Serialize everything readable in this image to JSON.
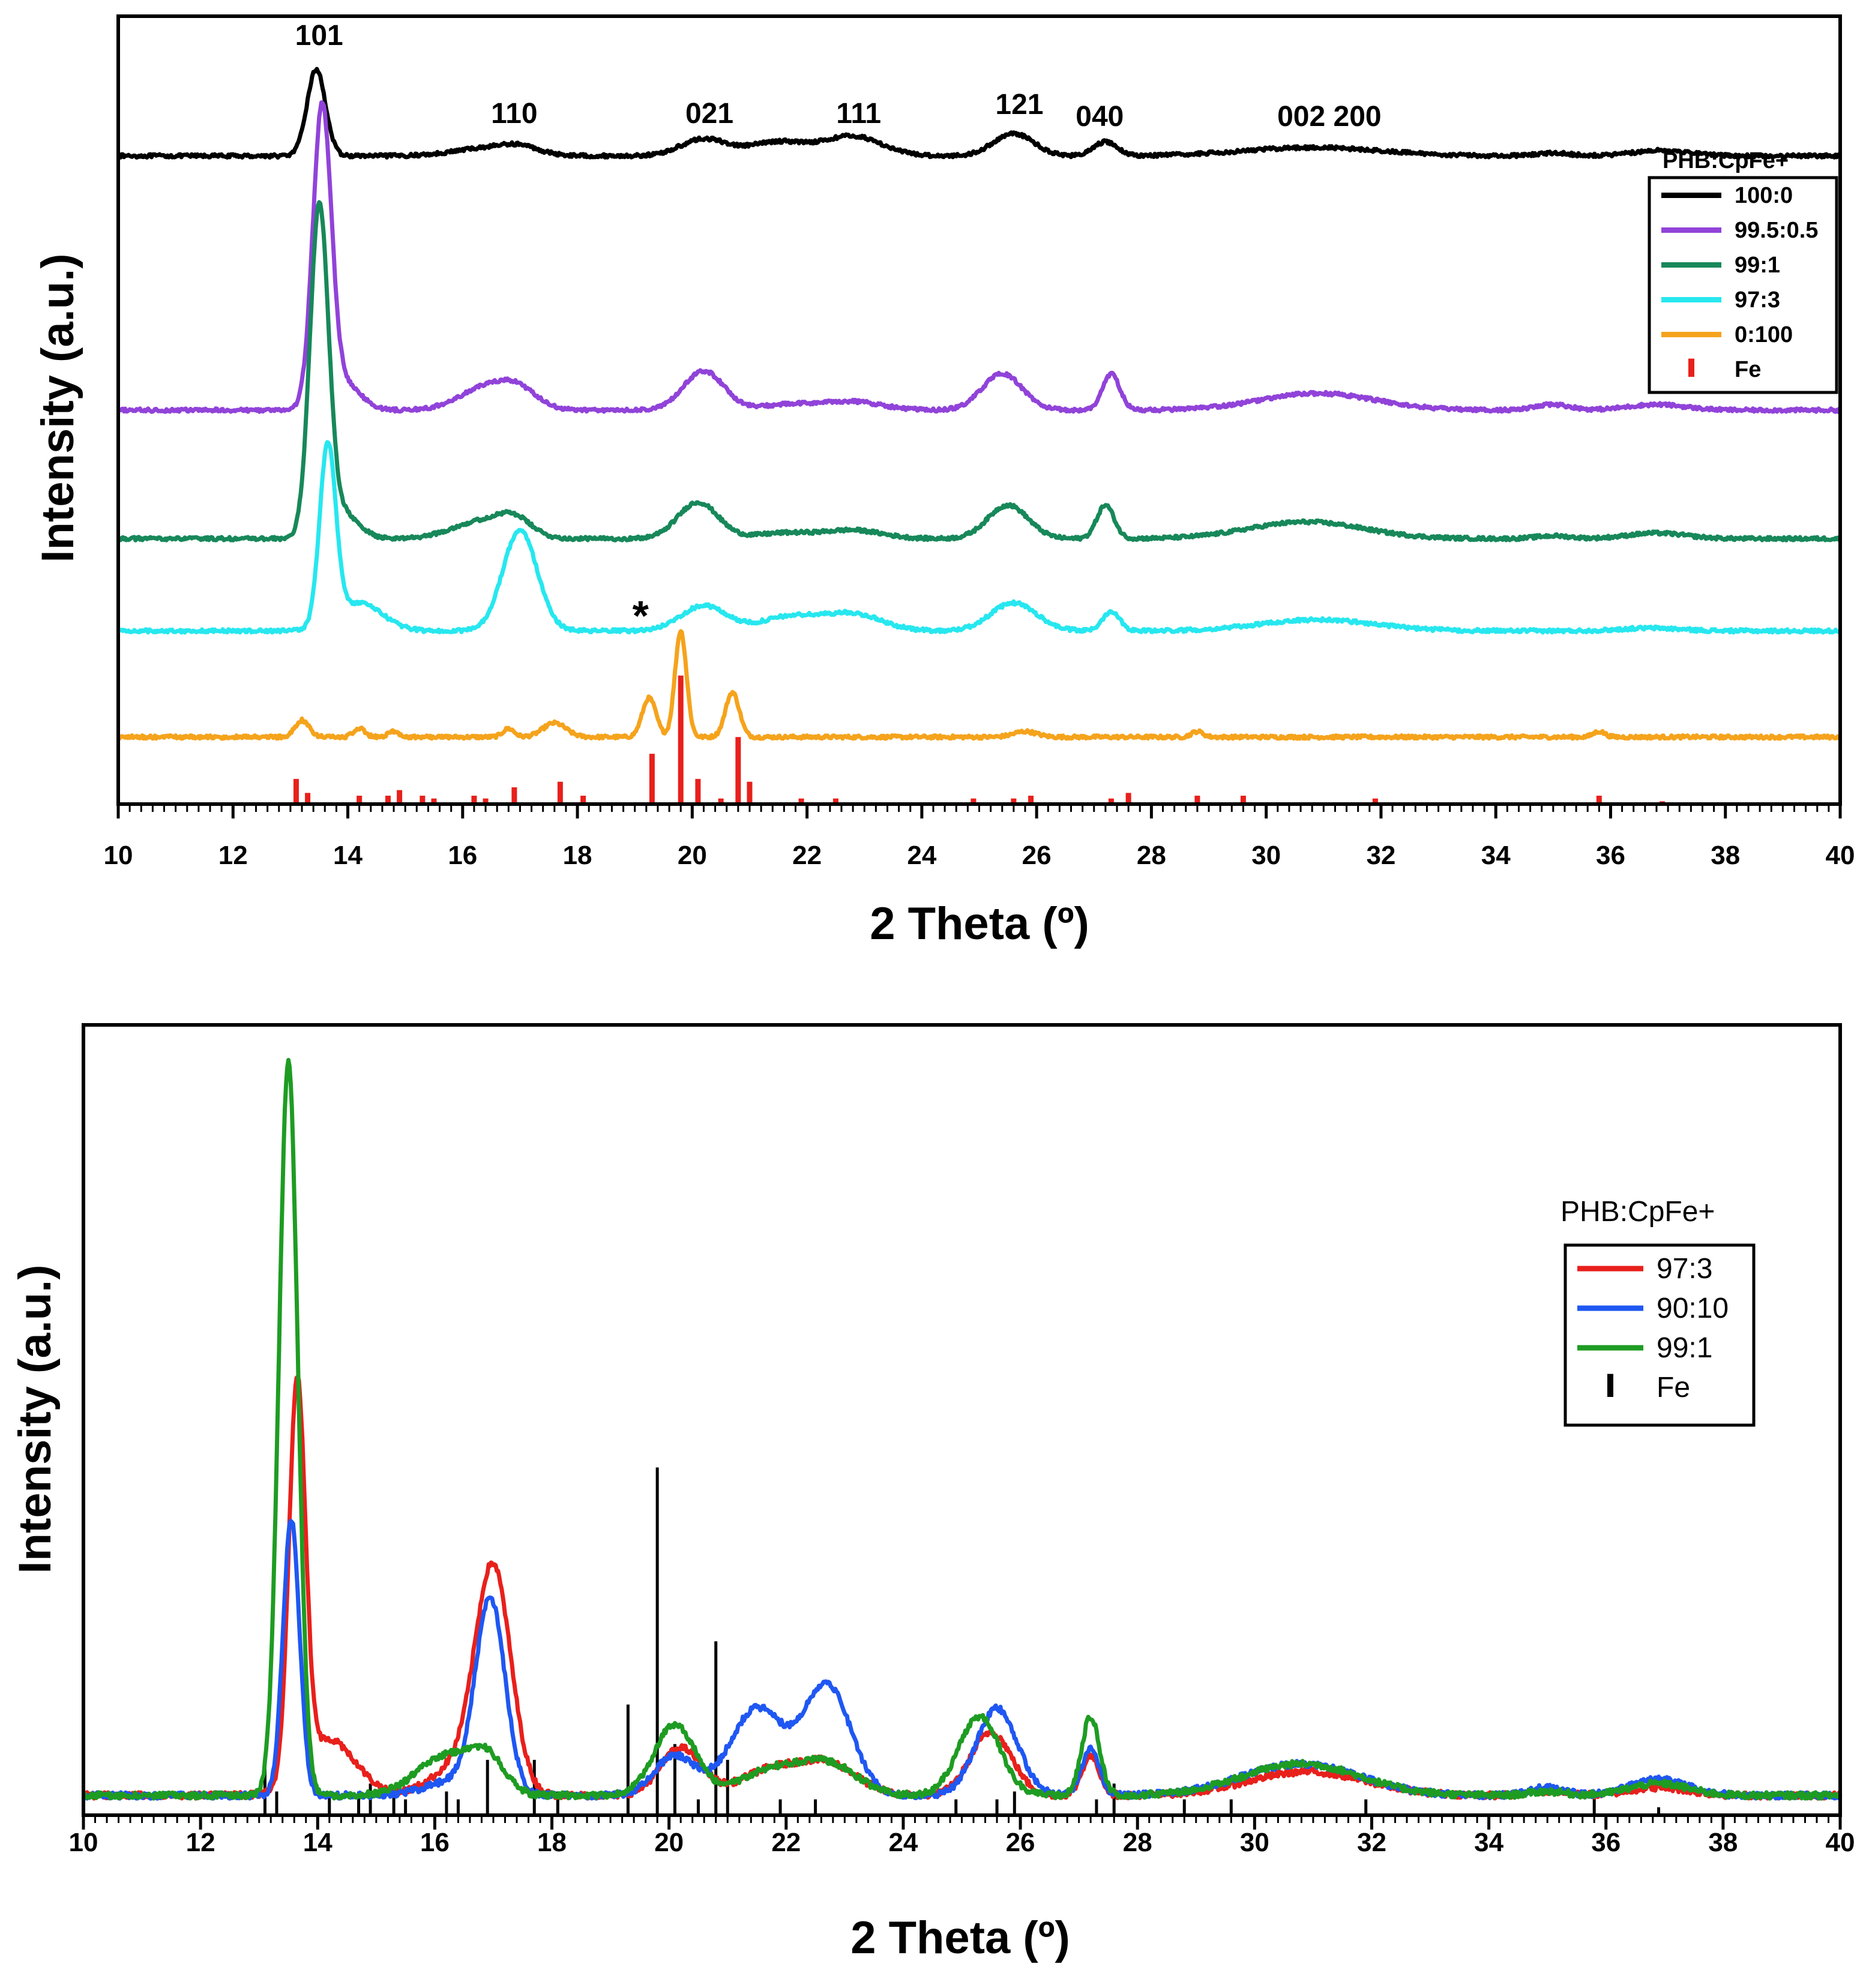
{
  "chart_data": [
    {
      "type": "line",
      "xlabel": "2 Theta (º)",
      "ylabel": "Intensity (a.u.)",
      "xlim": [
        10,
        40
      ],
      "ylim": [
        0,
        2.82
      ],
      "xticks": [
        10,
        12,
        14,
        16,
        18,
        20,
        22,
        24,
        26,
        28,
        30,
        32,
        34,
        36,
        38,
        40
      ],
      "xtick_labels": [
        "10",
        "12",
        "14",
        "16",
        "18",
        "20",
        "22",
        "24",
        "26",
        "28",
        "30",
        "32",
        "34",
        "36",
        "38",
        "40"
      ],
      "legend": {
        "title": "PHB:CpFe+",
        "position": "top-right",
        "entries": [
          "100:0",
          "99.5:0.5",
          "99:1",
          "97:3",
          "0:100",
          "Fe"
        ]
      },
      "peak_labels": [
        {
          "text": "101",
          "x": 13.5
        },
        {
          "text": "110",
          "x": 16.9
        },
        {
          "text": "021",
          "x": 20.3
        },
        {
          "text": "111",
          "x": 22.9
        },
        {
          "text": "121",
          "x": 25.7
        },
        {
          "text": "040",
          "x": 27.1
        },
        {
          "text": "002 200",
          "x": 31.1
        }
      ],
      "marker": {
        "text": "*",
        "x": 19.1
      },
      "series": [
        {
          "name": "100:0",
          "color": "#000000",
          "baseline": 2.32,
          "peaks": [
            [
              13.45,
              0.31,
              0.16
            ],
            [
              16.5,
              0.03,
              0.6
            ],
            [
              17.0,
              0.02,
              0.3
            ],
            [
              20.2,
              0.06,
              0.4
            ],
            [
              21.5,
              0.05,
              0.5
            ],
            [
              22.8,
              0.07,
              0.5
            ],
            [
              25.6,
              0.08,
              0.35
            ],
            [
              27.2,
              0.05,
              0.2
            ],
            [
              30.8,
              0.03,
              1.2
            ],
            [
              35.0,
              0.01,
              0.3
            ],
            [
              36.9,
              0.02,
              0.5
            ]
          ]
        },
        {
          "name": "99.5:0.5",
          "color": "#9143D9",
          "baseline": 1.41,
          "peaks": [
            [
              13.55,
              1.05,
              0.16
            ],
            [
              13.9,
              0.1,
              0.3
            ],
            [
              16.5,
              0.09,
              0.5
            ],
            [
              17.0,
              0.04,
              0.3
            ],
            [
              20.2,
              0.14,
              0.35
            ],
            [
              21.7,
              0.02,
              0.5
            ],
            [
              22.8,
              0.03,
              0.5
            ],
            [
              25.4,
              0.13,
              0.35
            ],
            [
              27.3,
              0.13,
              0.15
            ],
            [
              30.9,
              0.06,
              1.0
            ],
            [
              35.0,
              0.02,
              0.3
            ],
            [
              36.8,
              0.02,
              0.5
            ]
          ]
        },
        {
          "name": "99:1",
          "color": "#17885A",
          "baseline": 0.95,
          "peaks": [
            [
              13.5,
              1.15,
              0.16
            ],
            [
              13.85,
              0.1,
              0.3
            ],
            [
              16.3,
              0.06,
              0.5
            ],
            [
              16.9,
              0.06,
              0.3
            ],
            [
              20.1,
              0.13,
              0.35
            ],
            [
              21.6,
              0.02,
              0.5
            ],
            [
              22.8,
              0.03,
              0.5
            ],
            [
              25.5,
              0.12,
              0.35
            ],
            [
              27.2,
              0.12,
              0.15
            ],
            [
              30.7,
              0.06,
              1.0
            ],
            [
              35.0,
              0.01,
              0.3
            ],
            [
              36.8,
              0.02,
              0.5
            ]
          ]
        },
        {
          "name": "97:3",
          "color": "#27E7EF",
          "baseline": 0.62,
          "peaks": [
            [
              13.65,
              0.64,
              0.14
            ],
            [
              14.2,
              0.1,
              0.4
            ],
            [
              17.0,
              0.36,
              0.3
            ],
            [
              20.2,
              0.09,
              0.4
            ],
            [
              21.7,
              0.05,
              0.5
            ],
            [
              22.8,
              0.06,
              0.5
            ],
            [
              25.6,
              0.1,
              0.4
            ],
            [
              27.3,
              0.07,
              0.15
            ],
            [
              30.9,
              0.04,
              1.0
            ],
            [
              36.7,
              0.01,
              0.5
            ]
          ]
        },
        {
          "name": "0:100",
          "color": "#F5A31C",
          "baseline": 0.24,
          "peaks": [
            [
              13.2,
              0.06,
              0.12
            ],
            [
              14.2,
              0.03,
              0.1
            ],
            [
              14.8,
              0.02,
              0.1
            ],
            [
              16.8,
              0.03,
              0.1
            ],
            [
              17.6,
              0.05,
              0.2
            ],
            [
              19.25,
              0.14,
              0.12
            ],
            [
              19.8,
              0.38,
              0.1
            ],
            [
              20.7,
              0.16,
              0.12
            ],
            [
              25.8,
              0.02,
              0.2
            ],
            [
              28.8,
              0.02,
              0.1
            ],
            [
              35.8,
              0.02,
              0.1
            ]
          ]
        }
      ],
      "reference": {
        "name": "Fe",
        "color": "#E8201C",
        "base": 0.0,
        "x": [
          13.1,
          13.3,
          14.2,
          14.7,
          14.9,
          15.3,
          15.5,
          16.2,
          16.4,
          16.9,
          17.7,
          18.1,
          19.3,
          19.8,
          20.1,
          20.5,
          20.8,
          21.0,
          21.9,
          22.5,
          24.9,
          25.6,
          25.9,
          27.3,
          27.6,
          28.8,
          29.6,
          31.9,
          35.8,
          36.9
        ],
        "values": [
          0.09,
          0.04,
          0.03,
          0.03,
          0.05,
          0.03,
          0.02,
          0.03,
          0.02,
          0.06,
          0.08,
          0.03,
          0.18,
          0.46,
          0.09,
          0.02,
          0.24,
          0.08,
          0.02,
          0.02,
          0.02,
          0.02,
          0.03,
          0.02,
          0.04,
          0.03,
          0.03,
          0.02,
          0.03,
          0.01
        ]
      }
    },
    {
      "type": "line",
      "xlabel": "2 Theta (º)",
      "ylabel": "Intensity (a.u.)",
      "xlim": [
        10,
        40
      ],
      "ylim": [
        0,
        1.0
      ],
      "xticks": [
        10,
        12,
        14,
        16,
        18,
        20,
        22,
        24,
        26,
        28,
        30,
        32,
        34,
        36,
        38,
        40
      ],
      "xtick_labels": [
        "10",
        "12",
        "14",
        "16",
        "18",
        "20",
        "22",
        "24",
        "26",
        "28",
        "30",
        "32",
        "34",
        "36",
        "38",
        "40"
      ],
      "legend": {
        "title": "PHB:CpFe+",
        "position": "right",
        "entries": [
          "97:3",
          "90:10",
          "99:1",
          "Fe"
        ]
      },
      "series": [
        {
          "name": "97:3",
          "color": "#E8201C",
          "baseline": 0.025,
          "peaks": [
            [
              13.65,
              0.5,
              0.14
            ],
            [
              14.2,
              0.07,
              0.45
            ],
            [
              16.5,
              0.04,
              0.5
            ],
            [
              17.0,
              0.27,
              0.3
            ],
            [
              20.2,
              0.06,
              0.35
            ],
            [
              21.7,
              0.03,
              0.5
            ],
            [
              22.7,
              0.04,
              0.5
            ],
            [
              25.5,
              0.08,
              0.35
            ],
            [
              27.2,
              0.05,
              0.15
            ],
            [
              30.9,
              0.03,
              1.0
            ],
            [
              35.0,
              0.005,
              0.3
            ],
            [
              36.9,
              0.01,
              0.5
            ]
          ]
        },
        {
          "name": "90:10",
          "color": "#1F57F2",
          "baseline": 0.025,
          "peaks": [
            [
              13.55,
              0.35,
              0.14
            ],
            [
              16.95,
              0.24,
              0.25
            ],
            [
              16.4,
              0.02,
              0.5
            ],
            [
              20.1,
              0.05,
              0.35
            ],
            [
              21.5,
              0.11,
              0.45
            ],
            [
              22.7,
              0.14,
              0.4
            ],
            [
              25.6,
              0.11,
              0.35
            ],
            [
              27.2,
              0.06,
              0.15
            ],
            [
              30.8,
              0.04,
              1.0
            ],
            [
              35.0,
              0.01,
              0.3
            ],
            [
              36.9,
              0.02,
              0.5
            ]
          ]
        },
        {
          "name": "99:1",
          "color": "#1E9C22",
          "baseline": 0.025,
          "peaks": [
            [
              13.5,
              0.93,
              0.16
            ],
            [
              16.2,
              0.05,
              0.5
            ],
            [
              16.9,
              0.04,
              0.3
            ],
            [
              20.1,
              0.09,
              0.35
            ],
            [
              21.7,
              0.03,
              0.5
            ],
            [
              22.7,
              0.04,
              0.5
            ],
            [
              25.3,
              0.1,
              0.35
            ],
            [
              27.2,
              0.1,
              0.15
            ],
            [
              30.8,
              0.04,
              1.0
            ],
            [
              35.0,
              0.005,
              0.3
            ],
            [
              36.9,
              0.015,
              0.5
            ]
          ]
        }
      ],
      "reference": {
        "name": "Fe",
        "color": "#000000",
        "base": 0.0,
        "x": [
          13.1,
          13.3,
          14.2,
          14.7,
          14.9,
          15.3,
          15.5,
          16.2,
          16.4,
          16.9,
          17.7,
          18.1,
          19.3,
          19.8,
          20.1,
          20.5,
          20.8,
          21.0,
          21.9,
          22.5,
          24.9,
          25.6,
          25.9,
          27.3,
          27.6,
          28.8,
          29.6,
          31.9,
          35.8,
          36.9
        ],
        "values": [
          0.07,
          0.03,
          0.03,
          0.03,
          0.04,
          0.03,
          0.02,
          0.03,
          0.02,
          0.07,
          0.07,
          0.03,
          0.14,
          0.44,
          0.09,
          0.02,
          0.22,
          0.07,
          0.02,
          0.02,
          0.02,
          0.02,
          0.03,
          0.02,
          0.04,
          0.02,
          0.02,
          0.02,
          0.03,
          0.01
        ]
      }
    }
  ]
}
